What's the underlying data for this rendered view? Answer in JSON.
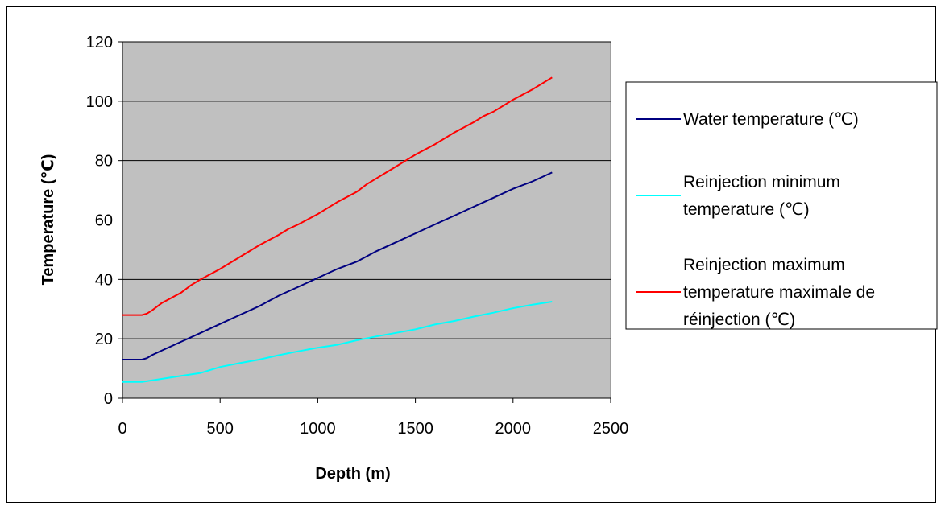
{
  "chart_data": {
    "type": "line",
    "title": "",
    "xlabel": "Depth (m)",
    "ylabel": "Temperature (℃)",
    "xlim": [
      0,
      2500
    ],
    "ylim": [
      0,
      120
    ],
    "xticks": [
      0,
      500,
      1000,
      1500,
      2000,
      2500
    ],
    "yticks": [
      0,
      20,
      40,
      60,
      80,
      100,
      120
    ],
    "grid": true,
    "legend_position": "right",
    "plot_background": "#c0c0c0",
    "series": [
      {
        "name": "Water temperature (℃)",
        "legend_lines": [
          "Water temperature (℃)"
        ],
        "color": "#000080",
        "x": [
          0,
          100,
          125,
          150,
          200,
          300,
          400,
          500,
          600,
          700,
          800,
          900,
          1000,
          1100,
          1200,
          1300,
          1400,
          1500,
          1600,
          1700,
          1800,
          1900,
          2000,
          2100,
          2200
        ],
        "y": [
          13,
          13,
          13.5,
          14.5,
          16,
          19,
          22,
          25,
          28,
          31,
          34.5,
          37.5,
          40.5,
          43.5,
          46,
          49.5,
          52.5,
          55.5,
          58.5,
          61.5,
          64.5,
          67.5,
          70.5,
          73,
          76
        ]
      },
      {
        "name": "Reinjection minimum temperature (℃)",
        "legend_lines": [
          "Reinjection minimum",
          "temperature (℃)"
        ],
        "color": "#00ffff",
        "x": [
          0,
          100,
          200,
          300,
          400,
          500,
          600,
          700,
          800,
          900,
          1000,
          1100,
          1200,
          1300,
          1400,
          1500,
          1600,
          1700,
          1800,
          1900,
          2000,
          2100,
          2200
        ],
        "y": [
          5.5,
          5.5,
          6.5,
          7.5,
          8.5,
          10.5,
          11.8,
          13,
          14.5,
          15.8,
          17,
          18,
          19.5,
          20.8,
          22,
          23.2,
          24.8,
          26,
          27.5,
          28.8,
          30.3,
          31.5,
          32.5
        ]
      },
      {
        "name": "Reinjection maximum temperature maximale de réinjection (℃)",
        "legend_lines": [
          "Reinjection maximum",
          "temperature maximale de",
          "réinjection (℃)"
        ],
        "color": "#ff0000",
        "x": [
          0,
          100,
          125,
          150,
          200,
          300,
          350,
          400,
          500,
          600,
          700,
          800,
          850,
          900,
          1000,
          1050,
          1100,
          1200,
          1250,
          1300,
          1400,
          1450,
          1500,
          1600,
          1700,
          1800,
          1850,
          1900,
          2000,
          2100,
          2200
        ],
        "y": [
          28,
          28,
          28.5,
          29.5,
          32,
          35.5,
          38,
          40,
          43.5,
          47.5,
          51.5,
          55,
          57,
          58.5,
          62,
          64,
          66,
          69.5,
          72,
          74,
          78,
          80,
          82,
          85.5,
          89.5,
          93,
          95,
          96.5,
          100.5,
          104,
          108
        ]
      }
    ]
  }
}
